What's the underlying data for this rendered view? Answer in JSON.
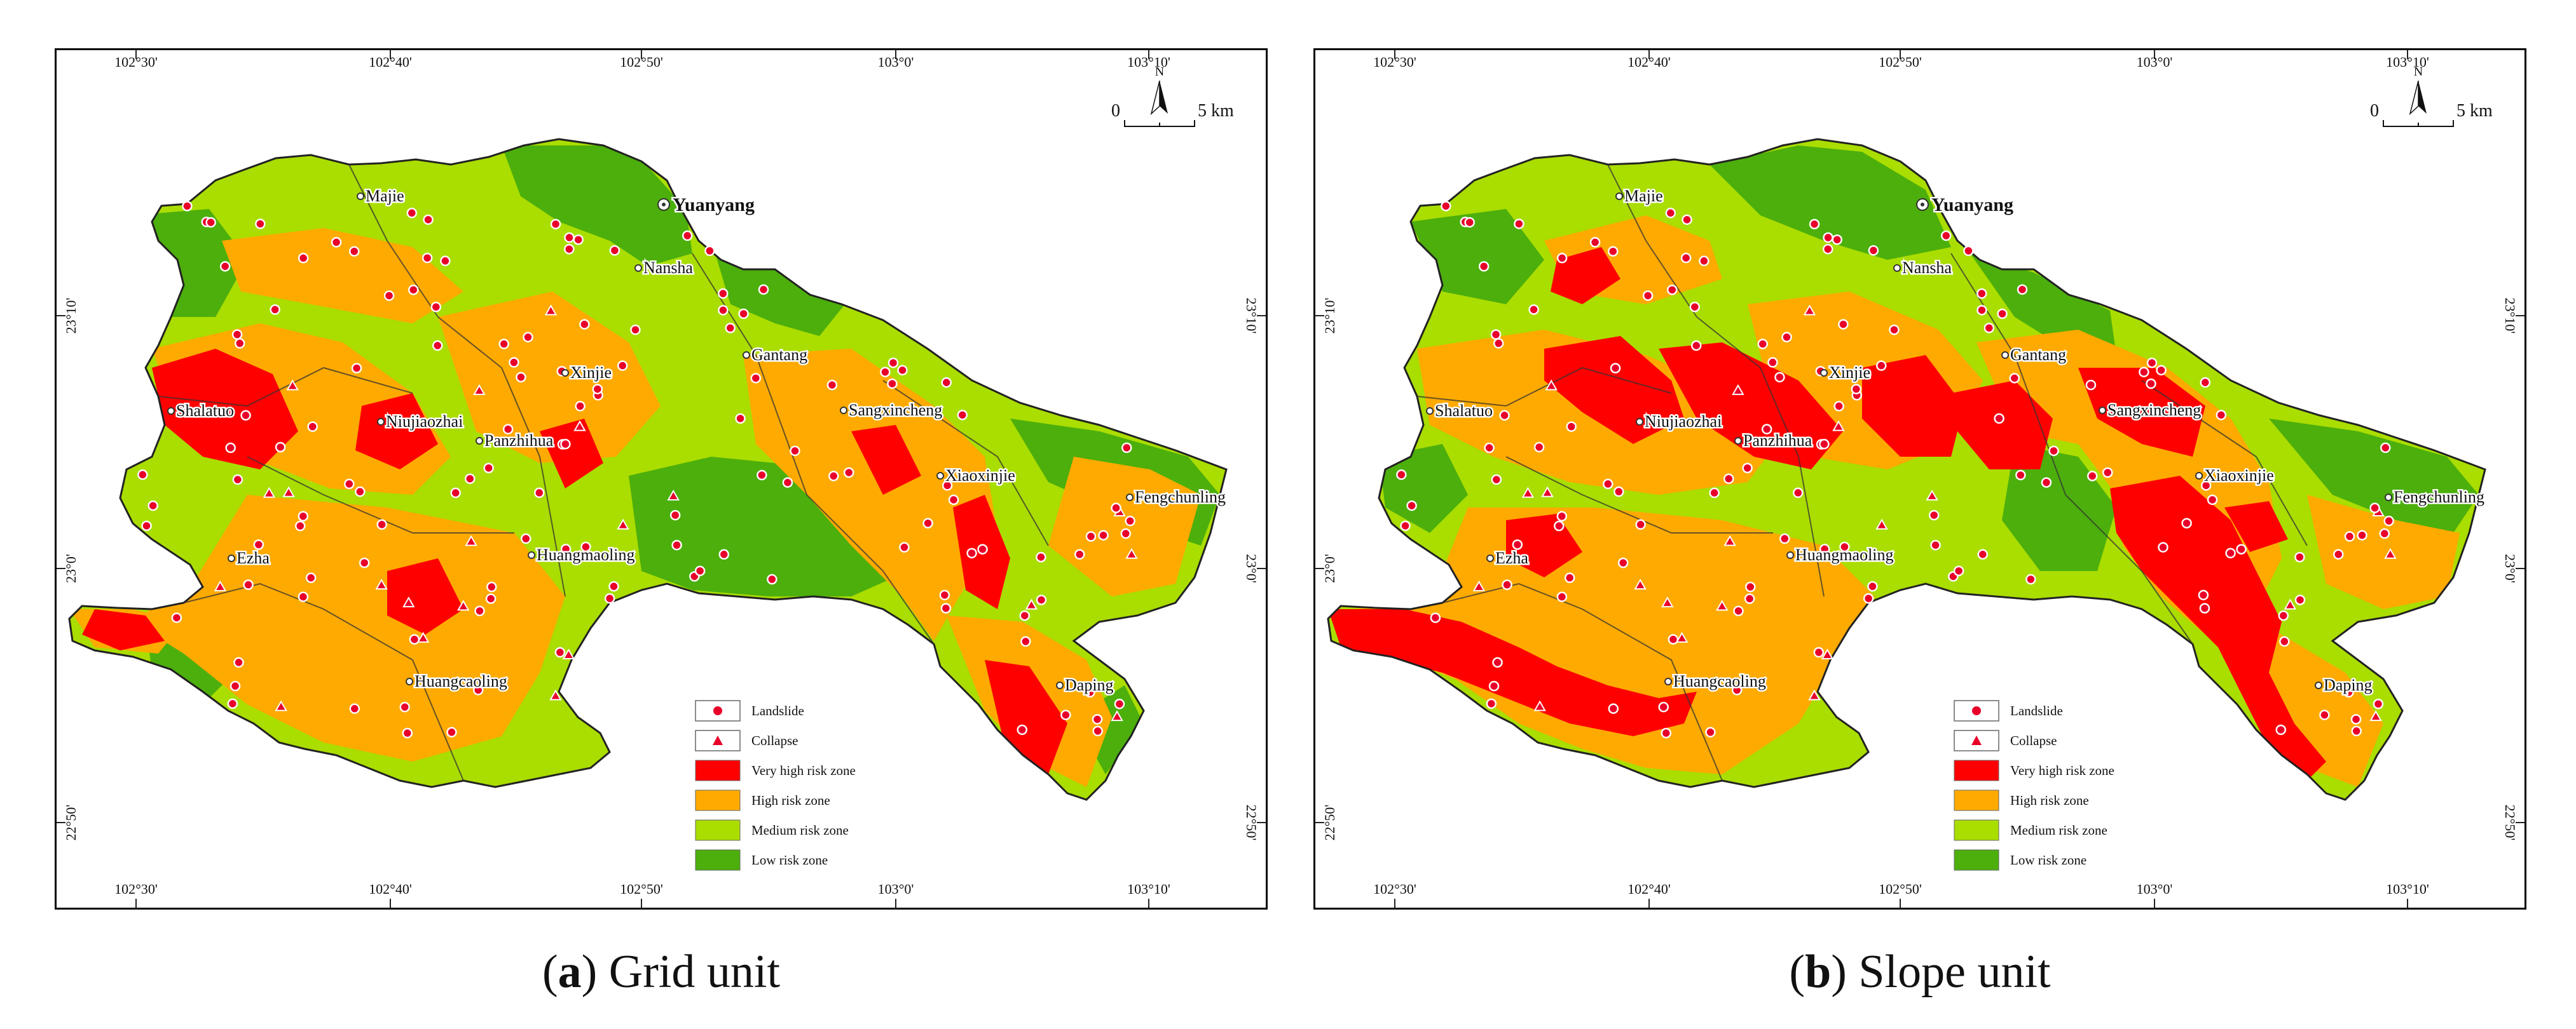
{
  "panels": [
    {
      "id": "a",
      "caption_letter": "a",
      "caption_text": "Grid unit",
      "top_ticks": [
        "102°30'",
        "102°40'",
        "102°50'",
        "103°0'",
        "103°10'"
      ],
      "bottom_ticks": [
        "102°30'",
        "102°40'",
        "102°50'",
        "103°0'",
        "103°10'"
      ],
      "left_ticks": [
        "23°10'",
        "23°0'",
        "22°50'"
      ],
      "right_ticks": [
        "23°10'",
        "23°0'",
        "22°50'"
      ]
    },
    {
      "id": "b",
      "caption_letter": "b",
      "caption_text": "Slope unit",
      "top_ticks": [
        "102°30'",
        "102°40'",
        "102°50'",
        "103°0'",
        "103°10'"
      ],
      "bottom_ticks": [
        "102°30'",
        "102°40'",
        "102°50'",
        "103°0'",
        "103°10'"
      ],
      "left_ticks": [
        "23°10'",
        "23°0'",
        "22°50'"
      ],
      "right_ticks": [
        "23°10'",
        "23°0'",
        "22°50'"
      ]
    }
  ],
  "north_label": "N",
  "scale_zero": "0",
  "scale_km": "5 km",
  "towns": [
    "Majie",
    "Nansha",
    "Xinjie",
    "Gantang",
    "Shalatuo",
    "Niujiaozhai",
    "Panzhihua",
    "Sangxincheng",
    "Xiaoxinjie",
    "Fengchunling",
    "Ezha",
    "Huangmaoling",
    "Huangcaoling",
    "Daping"
  ],
  "capital": "Yuanyang",
  "legend": [
    {
      "label": "Landslide",
      "symbol": "circle"
    },
    {
      "label": "Collapse",
      "symbol": "triangle"
    },
    {
      "label": "Very high risk zone",
      "color": "#ff0000"
    },
    {
      "label": "High risk zone",
      "color": "#ffaa00"
    },
    {
      "label": "Medium risk zone",
      "color": "#aadd00"
    },
    {
      "label": "Low risk zone",
      "color": "#4caf0c"
    }
  ],
  "colors": {
    "very_high": "#ff0000",
    "high": "#ffaa00",
    "medium": "#aadd00",
    "low": "#4caf0c",
    "point": "#e8002a"
  }
}
